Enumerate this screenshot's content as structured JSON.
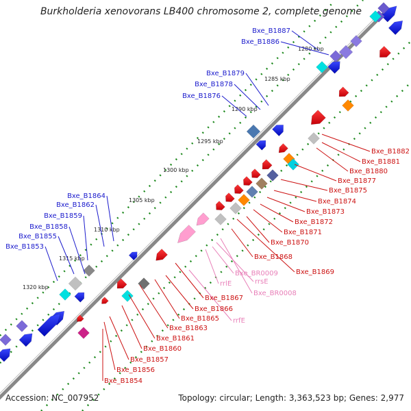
{
  "title": "Burkholderia xenovorans LB400 chromosome 2, complete genome",
  "footer": {
    "accession": "Accession: NC_007952",
    "summary": "Topology: circular; Length: 3,363,523 bp; Genes: 2,977"
  },
  "scale_ticks": [
    "1280 kbp",
    "1285 kbp",
    "1290 kbp",
    "1295 kbp",
    "1300 kbp",
    "1305 kbp",
    "1310 kbp",
    "1315 kbp",
    "1320 kbp"
  ],
  "labels_forward": [
    "Bxe_B1887",
    "Bxe_B1886",
    "Bxe_B1879",
    "Bxe_B1878",
    "Bxe_B1876",
    "Bxe_B1864",
    "Bxe_B1862",
    "Bxe_B1859",
    "Bxe_B1858",
    "Bxe_B1855",
    "Bxe_B1853"
  ],
  "labels_reverse": [
    "Bxe_B1882",
    "Bxe_B1881",
    "Bxe_B1880",
    "Bxe_B1877",
    "Bxe_B1875",
    "Bxe_B1874",
    "Bxe_B1873",
    "Bxe_B1872",
    "Bxe_B1871",
    "Bxe_B1870",
    "Bxe_B1868",
    "Bxe_B1869",
    "Bxe_B1867",
    "Bxe_B1866",
    "Bxe_B1865",
    "Bxe_B1863",
    "Bxe_B1861",
    "Bxe_B1860",
    "Bxe_B1857",
    "Bxe_B1856",
    "Bxe_B1854"
  ],
  "labels_rna": [
    "Bxe_BR0009",
    "rrsE",
    "rrlE",
    "Bxe_BR0008",
    "rrfE"
  ],
  "colors": {
    "forward_label": "#1a1acc",
    "reverse_label": "#cc1111",
    "rna_label": "#e87fb8",
    "backbone": "#888888",
    "ruler_dots": "#1f8a1f",
    "forward_gene": "#0a14dc",
    "reverse_gene": "#e40b12"
  }
}
